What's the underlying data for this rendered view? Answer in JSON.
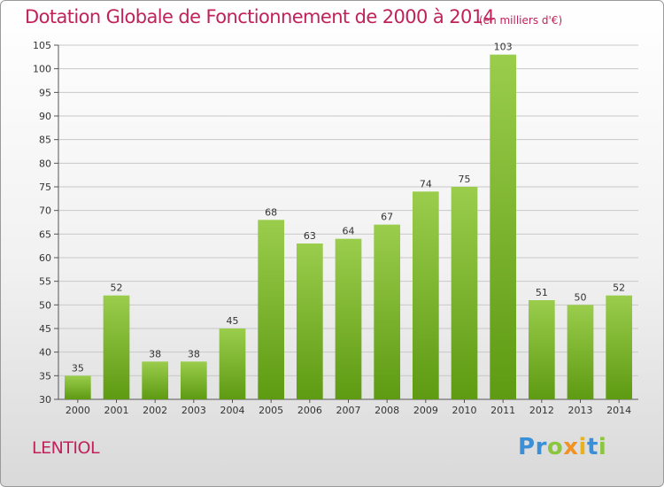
{
  "header": {
    "title": "Dotation Globale de Fonctionnement de 2000 à 2014",
    "unit": "(en milliers d'€)"
  },
  "footer": {
    "commune": "LENTIOL",
    "brand": "Proxiti"
  },
  "colors": {
    "accent": "#c0225a",
    "bar_top": "#9acd4c",
    "bar_bottom": "#5e9a12",
    "grid": "#c8c8c8"
  },
  "chart_data": {
    "type": "bar",
    "title": "Dotation Globale de Fonctionnement de 2000 à 2014",
    "subtitle": "(en milliers d'€)",
    "xlabel": "",
    "ylabel": "",
    "categories": [
      "2000",
      "2001",
      "2002",
      "2003",
      "2004",
      "2005",
      "2006",
      "2007",
      "2008",
      "2009",
      "2010",
      "2011",
      "2012",
      "2013",
      "2014"
    ],
    "values": [
      35,
      52,
      38,
      38,
      45,
      68,
      63,
      64,
      67,
      74,
      75,
      103,
      51,
      50,
      52
    ],
    "ylim": [
      30,
      105
    ],
    "yticks": [
      30,
      35,
      40,
      45,
      50,
      55,
      60,
      65,
      70,
      75,
      80,
      85,
      90,
      95,
      100,
      105
    ],
    "grid": "horizontal",
    "data_labels": true,
    "legend": "none"
  }
}
